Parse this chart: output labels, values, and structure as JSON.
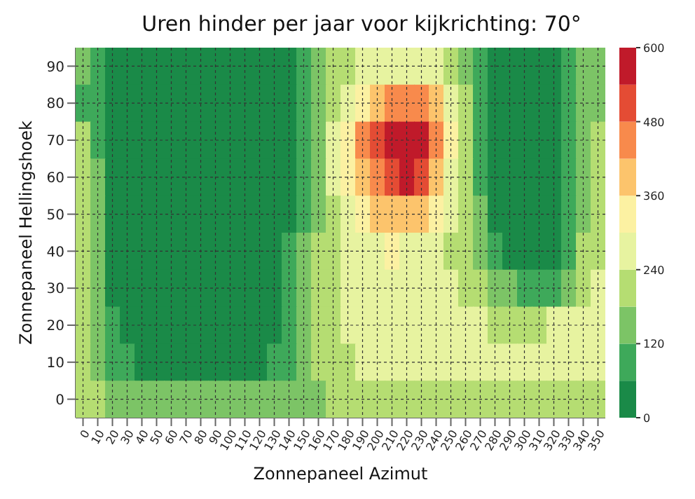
{
  "chart_data": {
    "type": "heatmap",
    "title": "Uren hinder per jaar voor kijkrichting: 70°",
    "xlabel": "Zonnepaneel Azimut",
    "ylabel": "Zonnepaneel Hellingshoek",
    "categories": [
      "0",
      "10",
      "20",
      "30",
      "40",
      "50",
      "60",
      "70",
      "80",
      "90",
      "100",
      "110",
      "120",
      "130",
      "140",
      "150",
      "160",
      "170",
      "180",
      "190",
      "200",
      "210",
      "220",
      "230",
      "240",
      "250",
      "260",
      "270",
      "280",
      "290",
      "300",
      "310",
      "320",
      "330",
      "340",
      "350"
    ],
    "y_categories": [
      "90",
      "80",
      "70",
      "60",
      "50",
      "40",
      "30",
      "20",
      "10",
      "0"
    ],
    "cells": [
      [
        150,
        100,
        40,
        20,
        10,
        0,
        0,
        0,
        0,
        0,
        0,
        0,
        10,
        20,
        40,
        80,
        140,
        190,
        220,
        250,
        270,
        280,
        280,
        270,
        250,
        220,
        160,
        90,
        40,
        20,
        10,
        10,
        20,
        60,
        120,
        160
      ],
      [
        90,
        80,
        40,
        10,
        0,
        0,
        0,
        0,
        0,
        0,
        0,
        0,
        0,
        20,
        40,
        90,
        160,
        230,
        290,
        340,
        390,
        440,
        460,
        430,
        360,
        290,
        200,
        100,
        40,
        20,
        0,
        0,
        20,
        60,
        120,
        170
      ],
      [
        180,
        110,
        40,
        10,
        0,
        0,
        0,
        0,
        0,
        0,
        0,
        0,
        0,
        20,
        40,
        100,
        170,
        260,
        330,
        420,
        500,
        570,
        590,
        540,
        420,
        310,
        210,
        110,
        40,
        20,
        0,
        0,
        20,
        60,
        130,
        190
      ],
      [
        200,
        130,
        50,
        10,
        0,
        0,
        0,
        0,
        0,
        0,
        0,
        0,
        0,
        20,
        40,
        100,
        170,
        250,
        320,
        390,
        470,
        530,
        540,
        480,
        380,
        290,
        210,
        110,
        40,
        20,
        0,
        0,
        20,
        70,
        140,
        200
      ],
      [
        210,
        140,
        50,
        10,
        0,
        0,
        0,
        0,
        0,
        0,
        0,
        0,
        0,
        20,
        50,
        110,
        170,
        230,
        280,
        330,
        370,
        400,
        400,
        360,
        300,
        250,
        200,
        120,
        50,
        20,
        0,
        0,
        30,
        80,
        160,
        210
      ],
      [
        210,
        140,
        50,
        10,
        0,
        0,
        0,
        0,
        0,
        0,
        0,
        0,
        0,
        30,
        60,
        120,
        180,
        230,
        250,
        270,
        290,
        300,
        290,
        270,
        250,
        230,
        200,
        150,
        90,
        50,
        30,
        20,
        50,
        110,
        180,
        230
      ],
      [
        210,
        140,
        50,
        10,
        10,
        10,
        0,
        0,
        0,
        0,
        0,
        0,
        0,
        30,
        70,
        130,
        180,
        220,
        240,
        250,
        250,
        250,
        250,
        250,
        250,
        240,
        230,
        200,
        160,
        120,
        100,
        90,
        110,
        160,
        210,
        240
      ],
      [
        210,
        150,
        60,
        20,
        10,
        10,
        0,
        0,
        0,
        0,
        0,
        0,
        10,
        40,
        80,
        140,
        180,
        220,
        240,
        250,
        250,
        250,
        250,
        250,
        250,
        250,
        250,
        240,
        230,
        220,
        220,
        230,
        250,
        260,
        260,
        260
      ],
      [
        210,
        170,
        110,
        70,
        40,
        30,
        20,
        20,
        20,
        20,
        20,
        20,
        30,
        60,
        100,
        150,
        190,
        220,
        230,
        240,
        240,
        240,
        240,
        240,
        240,
        240,
        250,
        250,
        250,
        260,
        270,
        270,
        270,
        260,
        250,
        240
      ],
      [
        210,
        190,
        170,
        150,
        140,
        130,
        130,
        130,
        130,
        130,
        130,
        130,
        130,
        140,
        150,
        160,
        170,
        180,
        180,
        180,
        180,
        180,
        180,
        180,
        180,
        180,
        180,
        180,
        180,
        180,
        190,
        190,
        190,
        190,
        190,
        180
      ]
    ],
    "clim": [
      0,
      600
    ],
    "cticks": [
      0,
      120,
      240,
      360,
      480,
      600
    ],
    "grid": true
  }
}
